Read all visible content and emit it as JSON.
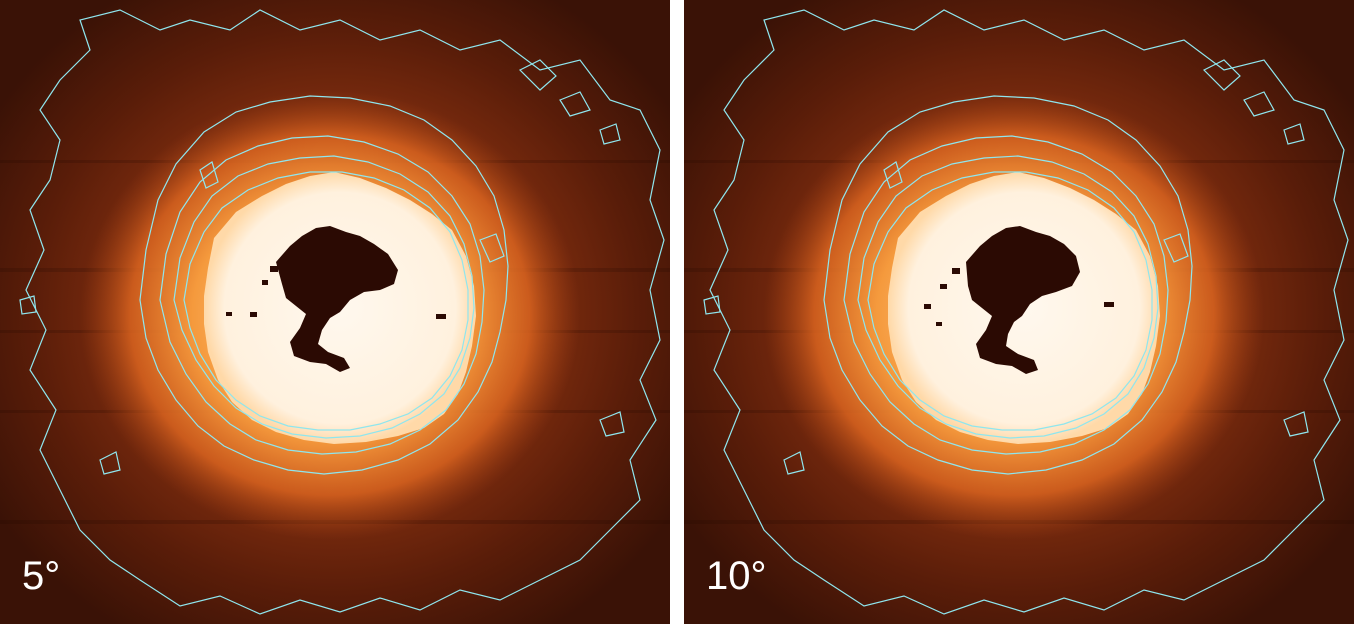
{
  "figure": {
    "panels": [
      {
        "angle_label": "5°"
      },
      {
        "angle_label": "10°"
      }
    ]
  },
  "colors": {
    "background_dark": "#3a1206",
    "halo_orange": "#e8782c",
    "core_white": "#fff3e4",
    "contour_cyan": "#8fe6ee",
    "label_text": "#ffffff"
  }
}
